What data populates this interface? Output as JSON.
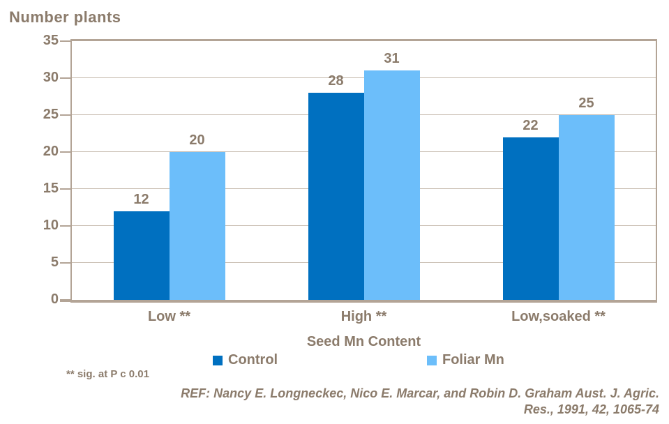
{
  "chart_data": {
    "type": "bar",
    "title": "Number plants",
    "xlabel": "Seed Mn Content",
    "ylabel": "Number plants",
    "categories": [
      "Low **",
      "High **",
      "Low,soaked **"
    ],
    "series": [
      {
        "name": "Control",
        "color": "#0070C0",
        "values": [
          12,
          28,
          22
        ]
      },
      {
        "name": "Foliar Mn",
        "color": "#6CBEFA",
        "values": [
          20,
          31,
          25
        ]
      }
    ],
    "ylim": [
      0,
      35
    ],
    "yticks": [
      0,
      5,
      10,
      15,
      20,
      25,
      30,
      35
    ],
    "grid": true,
    "legend_position": "bottom",
    "bar_value_labels": true
  },
  "annotations": {
    "significance_note": "** sig. at P c 0.01",
    "reference_lines": [
      "REF: Nancy E. Longneckec, Nico E. Marcar, and Robin D. Graham Aust. J. Agric.",
      "Res., 1991, 42, 1065-74"
    ]
  },
  "colors": {
    "background": "#ffffff",
    "text": "#8B7B6B",
    "grid_line": "#C9BEB2",
    "axis_line": "#B3A496",
    "control_series": "#0070C0",
    "foliar_series": "#6CBEFA"
  }
}
